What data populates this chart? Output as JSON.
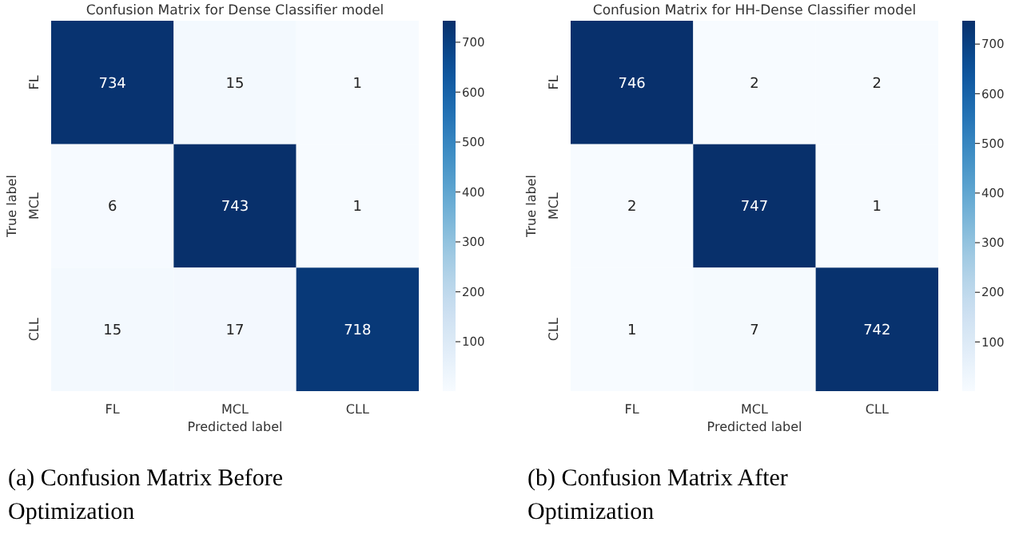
{
  "chart_data": [
    {
      "type": "heatmap",
      "title": "Confusion Matrix for Dense Classifier model",
      "xlabel": "Predicted label",
      "ylabel": "True label",
      "categories": [
        "FL",
        "MCL",
        "CLL"
      ],
      "y_categories": [
        "FL",
        "MCL",
        "CLL"
      ],
      "cells": [
        [
          734,
          15,
          1
        ],
        [
          6,
          743,
          1
        ],
        [
          15,
          17,
          718
        ]
      ],
      "data_labels": true,
      "clim": [
        1,
        743
      ],
      "cticks": [
        100,
        200,
        300,
        400,
        500,
        600,
        700
      ],
      "annotations": [
        "(a) Confusion Matrix Before Optimization"
      ]
    },
    {
      "type": "heatmap",
      "title": "Confusion Matrix for HH-Dense Classifier model",
      "xlabel": "Predicted label",
      "ylabel": "True label",
      "categories": [
        "FL",
        "MCL",
        "CLL"
      ],
      "y_categories": [
        "FL",
        "MCL",
        "CLL"
      ],
      "cells": [
        [
          746,
          2,
          2
        ],
        [
          2,
          747,
          1
        ],
        [
          1,
          7,
          742
        ]
      ],
      "data_labels": true,
      "clim": [
        1,
        747
      ],
      "cticks": [
        100,
        200,
        300,
        400,
        500,
        600,
        700
      ],
      "annotations": [
        "(b) Confusion Matrix After Optimization"
      ]
    }
  ]
}
